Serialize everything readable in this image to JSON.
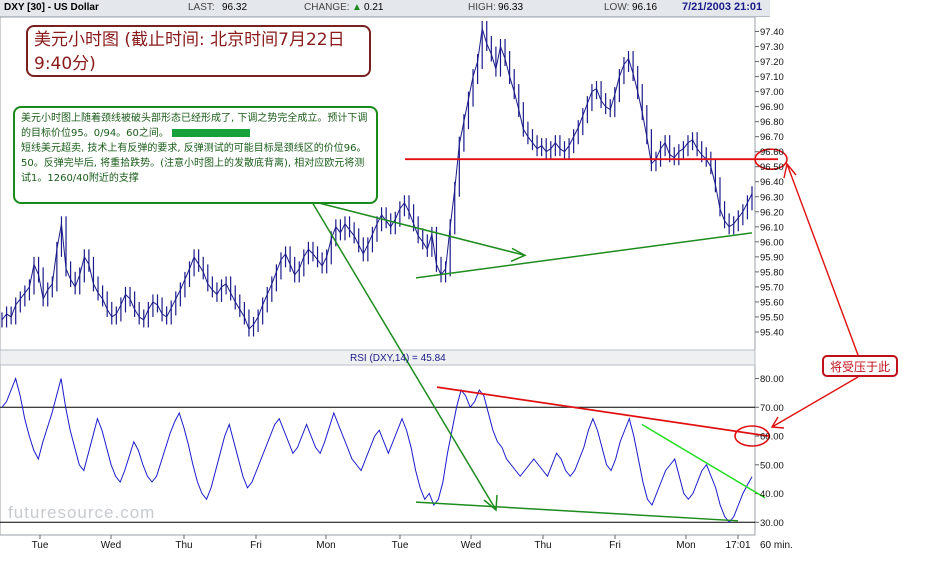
{
  "header": {
    "symbol": "DXY [30] - US Dollar",
    "last_label": "LAST:",
    "last_value": "96.32",
    "change_label": "CHANGE:",
    "change_value": "0.21",
    "high_label": "HIGH:",
    "high_value": "96.33",
    "low_label": "LOW:",
    "low_value": "96.16",
    "date": "7/21/2003 21:01"
  },
  "notes": {
    "title": "美元小时图 (截止时间: 北京时间7月22日9:40分)",
    "comment_1": "美元小时图上随着颈线被破头部形态已经形成了, 下调之势完全成立。预计下调的目标价位95。0/94。60之间。",
    "comment_2": "短线美元超卖, 技术上有反弹的要求, 反弹测试的可能目标是颈线区的价位96。50。反弹完毕后, 将重拾跌势。(注意小时图上的发散底背离), 相对应欧元将测试1。1260/40附近的支撑",
    "callout": "将受压于此"
  },
  "watermark": "futuresource.com",
  "chart_data": [
    {
      "type": "line",
      "ylim": [
        95.3,
        97.45
      ],
      "y_ticks": [
        "97.40",
        "97.30",
        "97.20",
        "97.10",
        "97.00",
        "96.90",
        "96.80",
        "96.70",
        "96.60",
        "96.50",
        "96.40",
        "96.30",
        "96.20",
        "96.10",
        "96.00",
        "95.90",
        "95.80",
        "95.70",
        "95.60",
        "95.50",
        "95.40"
      ],
      "x_labels": [
        "Tue",
        "Wed",
        "Thu",
        "Fri",
        "Mon",
        "Tue",
        "Wed",
        "Thu",
        "Fri",
        "Mon",
        "17:01"
      ],
      "interval_label": "60 min.",
      "series": [
        {
          "values": [
            95.48,
            95.52,
            95.5,
            95.58,
            95.62,
            95.66,
            95.7,
            95.85,
            95.78,
            95.62,
            95.68,
            95.72,
            95.95,
            96.12,
            95.82,
            95.75,
            95.7,
            95.78,
            95.9,
            95.85,
            95.72,
            95.66,
            95.62,
            95.55,
            95.5,
            95.52,
            95.58,
            95.65,
            95.62,
            95.55,
            95.5,
            95.48,
            95.55,
            95.6,
            95.58,
            95.52,
            95.5,
            95.56,
            95.62,
            95.68,
            95.75,
            95.82,
            95.9,
            95.85,
            95.8,
            95.72,
            95.68,
            95.65,
            95.7,
            95.72,
            95.66,
            95.6,
            95.55,
            95.5,
            95.42,
            95.45,
            95.5,
            95.58,
            95.65,
            95.72,
            95.8,
            95.88,
            95.92,
            95.85,
            95.78,
            95.82,
            95.9,
            95.95,
            95.92,
            95.88,
            95.84,
            95.9,
            96.02,
            96.1,
            96.06,
            96.12,
            96.08,
            96.04,
            95.98,
            95.92,
            95.98,
            96.05,
            96.12,
            96.18,
            96.14,
            96.1,
            96.15,
            96.22,
            96.26,
            96.2,
            96.12,
            96.04,
            96.0,
            95.95,
            96.05,
            95.85,
            95.78,
            95.82,
            96.1,
            96.35,
            96.65,
            96.8,
            96.95,
            97.1,
            97.2,
            97.42,
            97.32,
            97.25,
            97.15,
            97.3,
            97.22,
            97.1,
            97.0,
            96.88,
            96.75,
            96.7,
            96.66,
            96.62,
            96.64,
            96.6,
            96.62,
            96.66,
            96.62,
            96.6,
            96.64,
            96.7,
            96.76,
            96.84,
            96.92,
            97.0,
            97.02,
            96.94,
            96.9,
            96.88,
            96.98,
            97.1,
            97.18,
            97.22,
            97.12,
            97.0,
            96.86,
            96.7,
            96.52,
            96.55,
            96.62,
            96.66,
            96.58,
            96.56,
            96.6,
            96.62,
            96.66,
            96.68,
            96.62,
            96.58,
            96.55,
            96.5,
            96.38,
            96.22,
            96.14,
            96.1,
            96.12,
            96.16,
            96.2,
            96.26,
            96.32
          ]
        },
        {
          "name": "",
          "values": [
            96.55,
            96.55
          ]
        }
      ]
    },
    {
      "type": "line",
      "title": "RSI (DXY,14) = 45.84",
      "ylim": [
        28,
        84
      ],
      "y_ticks": [
        "80.00",
        "70.00",
        "60.00",
        "50.00",
        "40.00",
        "30.00"
      ],
      "reference_lines": [
        70,
        30
      ],
      "series": [
        {
          "name": "RSI (DXY,14)",
          "values": [
            70,
            72,
            76,
            80,
            74,
            66,
            60,
            55,
            52,
            58,
            63,
            68,
            74,
            80,
            70,
            62,
            56,
            50,
            48,
            54,
            60,
            66,
            62,
            56,
            50,
            46,
            44,
            48,
            53,
            58,
            55,
            50,
            46,
            44,
            46,
            51,
            56,
            61,
            65,
            68,
            63,
            57,
            50,
            44,
            40,
            38,
            42,
            48,
            54,
            60,
            64,
            58,
            52,
            46,
            42,
            44,
            48,
            52,
            56,
            60,
            64,
            66,
            62,
            58,
            54,
            56,
            60,
            64,
            60,
            56,
            54,
            58,
            63,
            68,
            64,
            60,
            56,
            52,
            50,
            48,
            52,
            56,
            60,
            62,
            58,
            54,
            58,
            62,
            66,
            62,
            56,
            48,
            42,
            38,
            40,
            36,
            38,
            44,
            54,
            62,
            70,
            76,
            74,
            70,
            72,
            76,
            74,
            68,
            62,
            58,
            56,
            52,
            50,
            48,
            46,
            48,
            50,
            52,
            50,
            48,
            46,
            50,
            54,
            52,
            48,
            46,
            48,
            52,
            56,
            62,
            66,
            62,
            56,
            50,
            48,
            52,
            58,
            62,
            66,
            60,
            52,
            44,
            38,
            36,
            40,
            44,
            48,
            50,
            52,
            46,
            40,
            38,
            40,
            44,
            48,
            50,
            46,
            42,
            36,
            32,
            30,
            32,
            36,
            40,
            43,
            45.84
          ]
        }
      ]
    }
  ],
  "colors": {
    "price": "#1a1a8a",
    "rsi": "#1a1acc",
    "annotation_red": "#e01010",
    "annotation_green": "#1e8c1e",
    "annotation_lime": "#22dd22"
  }
}
